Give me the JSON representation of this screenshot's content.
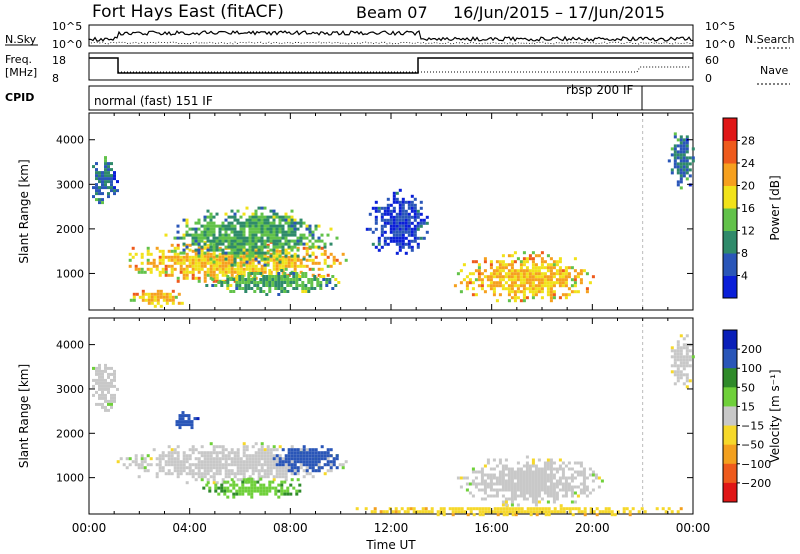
{
  "header": {
    "title": "Fort Hays East (fitACF)",
    "beam": "Beam 07",
    "date_range": "16/Jun/2015 – 17/Jun/2015"
  },
  "strips": {
    "nsky_label": "N.Sky",
    "nsky_ticks": [
      "10^5",
      "10^0"
    ],
    "nsearch_label": "N.Search",
    "nsearch_ticks": [
      "10^5",
      "10^0"
    ],
    "freq_label": "Freq.",
    "freq_unit": "[MHz]",
    "freq_ticks": [
      "18",
      "8"
    ],
    "nave_label": "Nave",
    "nave_ticks": [
      "60",
      "0"
    ],
    "cpid_label": "CPID",
    "cpid_segments": [
      {
        "label": "normal (fast) 151 IF",
        "start_hour": 0,
        "end_hour": 22
      },
      {
        "label": "rbsp 200 IF",
        "start_hour": 22,
        "end_hour": 24
      }
    ]
  },
  "chart_data": [
    {
      "type": "heatmap",
      "name": "power",
      "ylabel": "Slant Range [km]",
      "xlabel": "",
      "xlim": [
        0,
        24
      ],
      "ylim": [
        180,
        4600
      ],
      "yticks": [
        1000,
        2000,
        3000,
        4000
      ],
      "colorbar": {
        "label": "Power [dB]",
        "ticks": [
          4,
          8,
          12,
          16,
          20,
          24,
          28
        ],
        "colors": [
          "#0a1fd8",
          "#2a56b8",
          "#2f8a6a",
          "#62c24a",
          "#f1e21a",
          "#f6a01e",
          "#ee5a1c",
          "#e01616"
        ]
      },
      "regions": [
        {
          "x": [
            0,
            1.1
          ],
          "y": [
            2500,
            3700
          ],
          "value": 8
        },
        {
          "x": [
            1.1,
            10.2
          ],
          "y": [
            800,
            1800
          ],
          "value": 20
        },
        {
          "x": [
            3,
            9.8
          ],
          "y": [
            1200,
            2500
          ],
          "value": 12
        },
        {
          "x": [
            4.5,
            10
          ],
          "y": [
            550,
            1100
          ],
          "value": 12
        },
        {
          "x": [
            1.5,
            3.8
          ],
          "y": [
            250,
            700
          ],
          "value": 20
        },
        {
          "x": [
            11,
            13.5
          ],
          "y": [
            1400,
            2900
          ],
          "value": 4
        },
        {
          "x": [
            14.5,
            20
          ],
          "y": [
            350,
            1500
          ],
          "value": 20
        },
        {
          "x": [
            23,
            24
          ],
          "y": [
            2900,
            4300
          ],
          "value": 8
        }
      ]
    },
    {
      "type": "heatmap",
      "name": "velocity",
      "ylabel": "Slant Range [km]",
      "xlabel": "Time UT",
      "xlim": [
        0,
        24
      ],
      "ylim": [
        180,
        4600
      ],
      "xticks": [
        "00:00",
        "04:00",
        "08:00",
        "12:00",
        "16:00",
        "20:00",
        "00:00"
      ],
      "yticks": [
        1000,
        2000,
        3000,
        4000
      ],
      "colorbar": {
        "label": "Velocity [m s⁻¹]",
        "ticks": [
          200,
          100,
          50,
          15,
          -15,
          -50,
          -100,
          -200
        ],
        "colors": [
          "#0a1fb8",
          "#2a56b8",
          "#2f8a2a",
          "#6fd03a",
          "#c8c8c8",
          "#f6d82a",
          "#f3a01e",
          "#ee5a1c",
          "#e01616"
        ]
      },
      "regions": [
        {
          "x": [
            0,
            1.1
          ],
          "y": [
            2500,
            3700
          ],
          "value": 0
        },
        {
          "x": [
            1.1,
            10.3
          ],
          "y": [
            900,
            1800
          ],
          "value": 0
        },
        {
          "x": [
            7.3,
            10
          ],
          "y": [
            1100,
            1800
          ],
          "value": 150
        },
        {
          "x": [
            4.5,
            8.5
          ],
          "y": [
            550,
            1000
          ],
          "value": 40
        },
        {
          "x": [
            3.2,
            4.3
          ],
          "y": [
            2100,
            2500
          ],
          "value": 180
        },
        {
          "x": [
            10,
            24
          ],
          "y": [
            180,
            400
          ],
          "value": -40
        },
        {
          "x": [
            14.5,
            20.5
          ],
          "y": [
            400,
            1500
          ],
          "value": 0
        },
        {
          "x": [
            23,
            24
          ],
          "y": [
            3000,
            4300
          ],
          "value": 0
        }
      ]
    }
  ]
}
